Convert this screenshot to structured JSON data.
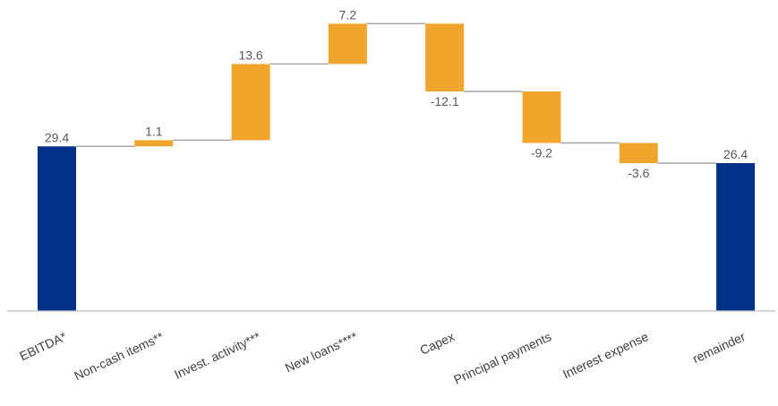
{
  "chart_data": {
    "type": "bar",
    "subtype": "waterfall",
    "categories": [
      "EBITDA*",
      "Non-cash items**",
      "Invest. activity***",
      "New loans****",
      "Capex",
      "Principal payments",
      "Interest expense",
      "remainder"
    ],
    "values": [
      29.4,
      1.1,
      13.6,
      7.2,
      -12.1,
      -9.2,
      -3.6,
      26.4
    ],
    "value_labels": [
      "29.4",
      "1.1",
      "13.6",
      "7.2",
      "-12.1",
      "-9.2",
      "-3.6",
      "26.4"
    ],
    "bar_kinds": [
      "total",
      "delta",
      "delta",
      "delta",
      "delta",
      "delta",
      "delta",
      "total"
    ],
    "ylim": [
      0,
      53
    ],
    "grid": false,
    "legend": "none",
    "title": "",
    "xlabel": "",
    "ylabel": "",
    "colors": {
      "total": "#003087",
      "delta": "#f0a52c",
      "connector": "#a6a6a6",
      "axis": "#bfbfbf",
      "label": "#595959"
    }
  }
}
